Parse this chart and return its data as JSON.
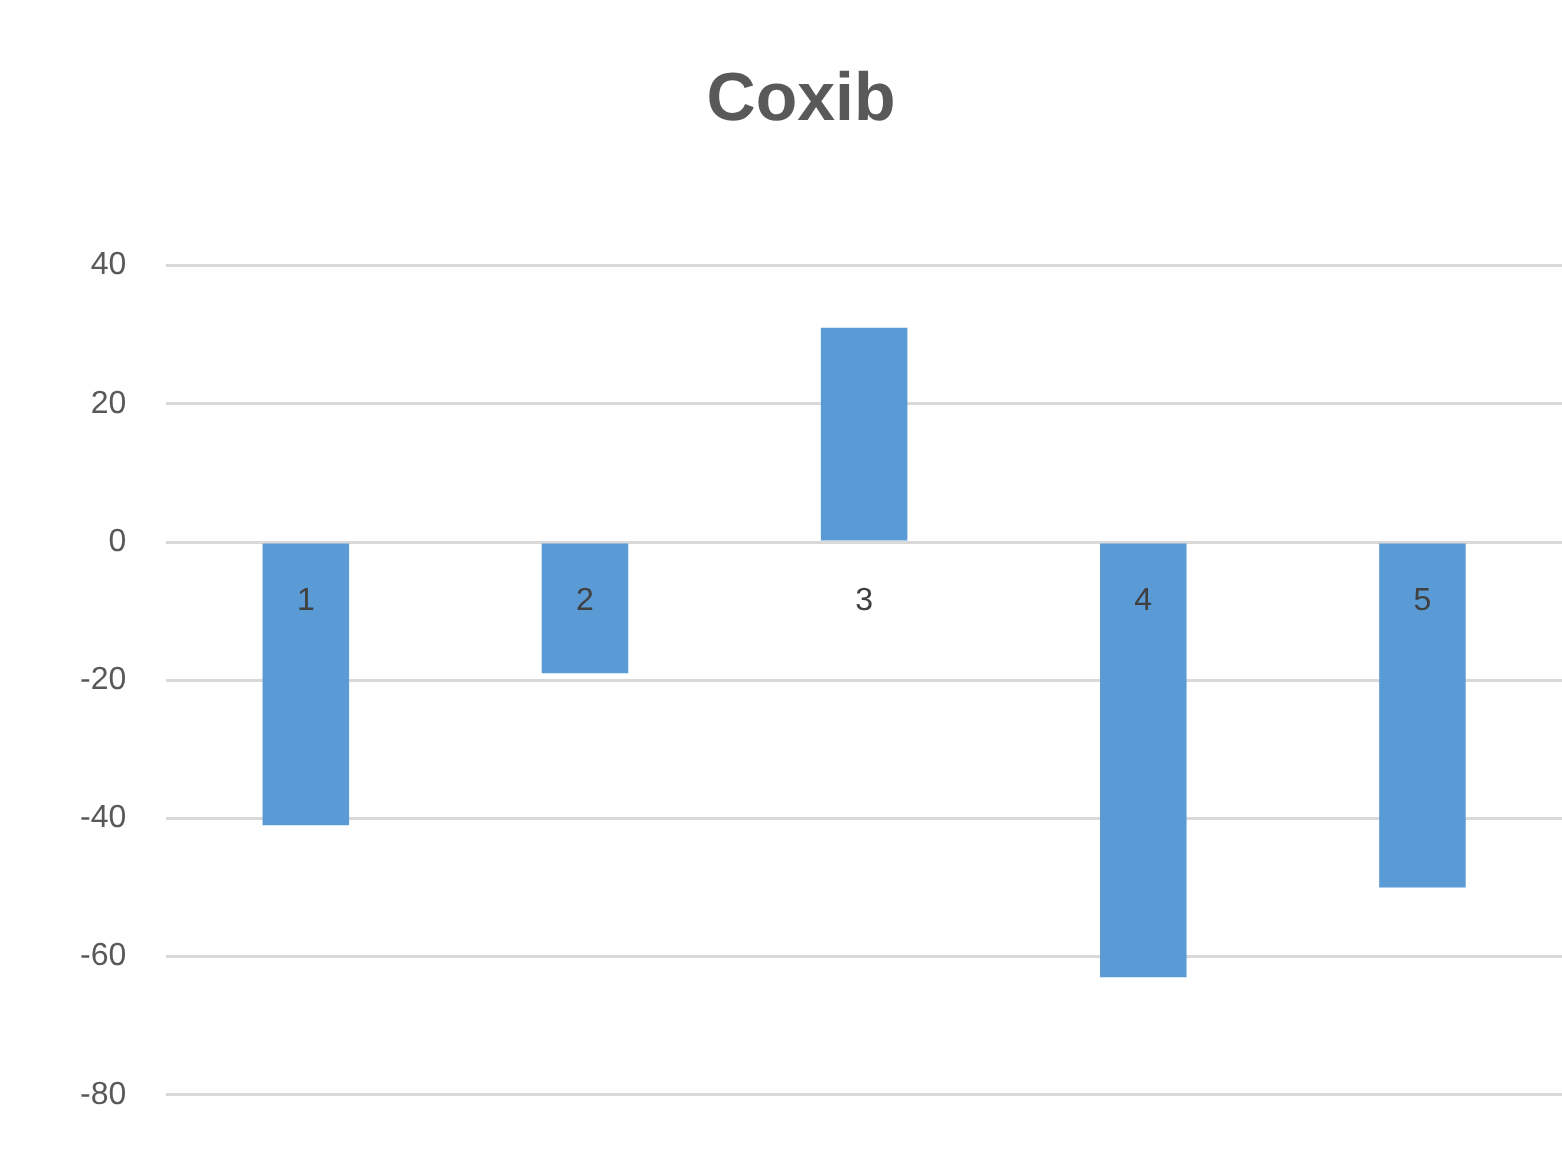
{
  "chart_data": {
    "type": "bar",
    "title": "Coxib",
    "categories": [
      "1",
      "2",
      "3",
      "4",
      "5"
    ],
    "values": [
      -41,
      -19,
      31,
      -63,
      -50
    ],
    "color": "#5b9bd5",
    "ylim": [
      -80,
      40
    ],
    "yticks": [
      -80,
      -60,
      -40,
      -20,
      0,
      20,
      40
    ],
    "grid": "y",
    "legend": false
  }
}
